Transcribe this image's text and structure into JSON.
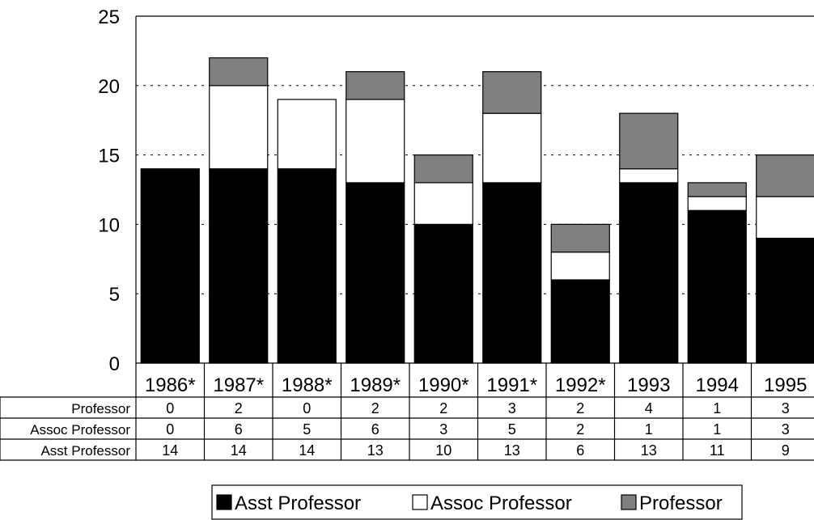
{
  "chart_data": {
    "type": "bar",
    "stacked": true,
    "title": "",
    "xlabel": "",
    "ylabel": "",
    "ylim": [
      0,
      25
    ],
    "yticks": [
      0,
      5,
      10,
      15,
      20,
      25
    ],
    "grid": "horizontal-dotted",
    "legend_position": "bottom",
    "categories": [
      "1986*",
      "1987*",
      "1988*",
      "1989*",
      "1990*",
      "1991*",
      "1992*",
      "1993",
      "1994",
      "1995"
    ],
    "series": [
      {
        "name": "Asst Professor",
        "color": "#000000",
        "values": [
          14,
          14,
          14,
          13,
          10,
          13,
          6,
          13,
          11,
          9
        ]
      },
      {
        "name": "Assoc Professor",
        "color": "#ffffff",
        "values": [
          0,
          6,
          5,
          6,
          3,
          5,
          2,
          1,
          1,
          3
        ]
      },
      {
        "name": "Professor",
        "color": "#808080",
        "values": [
          0,
          2,
          0,
          2,
          2,
          3,
          2,
          4,
          1,
          3
        ]
      }
    ],
    "table_rows": [
      "Professor",
      "Assoc Professor",
      "Asst Professor"
    ]
  }
}
